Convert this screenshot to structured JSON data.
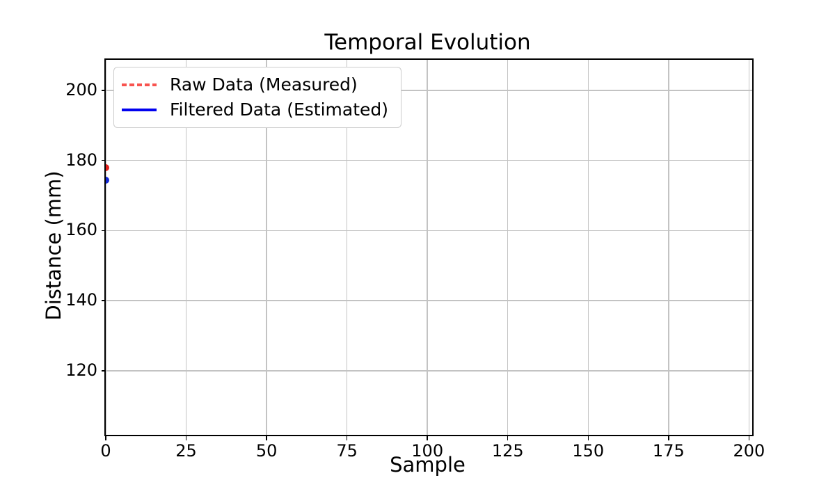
{
  "figure": {
    "background": "#ffffff",
    "text_color": "#000000",
    "grid_color": "#c3c3c3",
    "spine_color": "#000000"
  },
  "chart_data": {
    "type": "line",
    "title": "Temporal Evolution",
    "xlabel": "Sample",
    "ylabel": "Distance (mm)",
    "xlim": [
      0,
      201
    ],
    "ylim": [
      101.7,
      208.7
    ],
    "xticks": [
      0,
      25,
      50,
      75,
      100,
      125,
      150,
      175,
      200
    ],
    "yticks": [
      120,
      140,
      160,
      180,
      200
    ],
    "grid": true,
    "legend_position": "upper-left",
    "series": [
      {
        "name": "Raw Data (Measured)",
        "line_color": "#f8534f",
        "line_style": "dashed",
        "marker": "circle",
        "marker_color": "#e0211c",
        "x": [
          0
        ],
        "y": [
          178.0
        ]
      },
      {
        "name": "Filtered Data (Estimated)",
        "line_color": "#0202ef",
        "line_style": "solid",
        "marker": "circle",
        "marker_color": "#1228d4",
        "x": [
          0
        ],
        "y": [
          174.3
        ]
      }
    ]
  }
}
